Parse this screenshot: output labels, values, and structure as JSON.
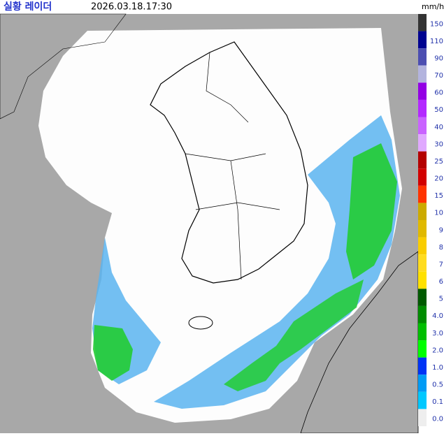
{
  "header": {
    "title": "실황 레이더",
    "timestamp": "2026.03.18.17:30"
  },
  "legend": {
    "unit": "mm/h",
    "items": [
      {
        "label": "150",
        "color": "#333333"
      },
      {
        "label": "110",
        "color": "#000390"
      },
      {
        "label": "90",
        "color": "#4c4eb1"
      },
      {
        "label": "70",
        "color": "#b3b4de"
      },
      {
        "label": "60",
        "color": "#9300e4"
      },
      {
        "label": "50",
        "color": "#b329ff"
      },
      {
        "label": "40",
        "color": "#c963ff"
      },
      {
        "label": "30",
        "color": "#e0a9ff"
      },
      {
        "label": "25",
        "color": "#b40000"
      },
      {
        "label": "20",
        "color": "#d20000"
      },
      {
        "label": "15",
        "color": "#ff3300"
      },
      {
        "label": "10",
        "color": "#ccaa00"
      },
      {
        "label": "9",
        "color": "#e0b900"
      },
      {
        "label": "8",
        "color": "#f9cd00"
      },
      {
        "label": "7",
        "color": "#ffdc1f"
      },
      {
        "label": "6",
        "color": "#ffe100"
      },
      {
        "label": "5",
        "color": "#005a00"
      },
      {
        "label": "4.0",
        "color": "#008c00"
      },
      {
        "label": "3.0",
        "color": "#00be00"
      },
      {
        "label": "2.0",
        "color": "#00ff00"
      },
      {
        "label": "1.0",
        "color": "#0033f5"
      },
      {
        "label": "0.5",
        "color": "#009bf5"
      },
      {
        "label": "0.1",
        "color": "#00c8ff"
      },
      {
        "label": "0.0",
        "color": "#eeeeee"
      }
    ]
  }
}
